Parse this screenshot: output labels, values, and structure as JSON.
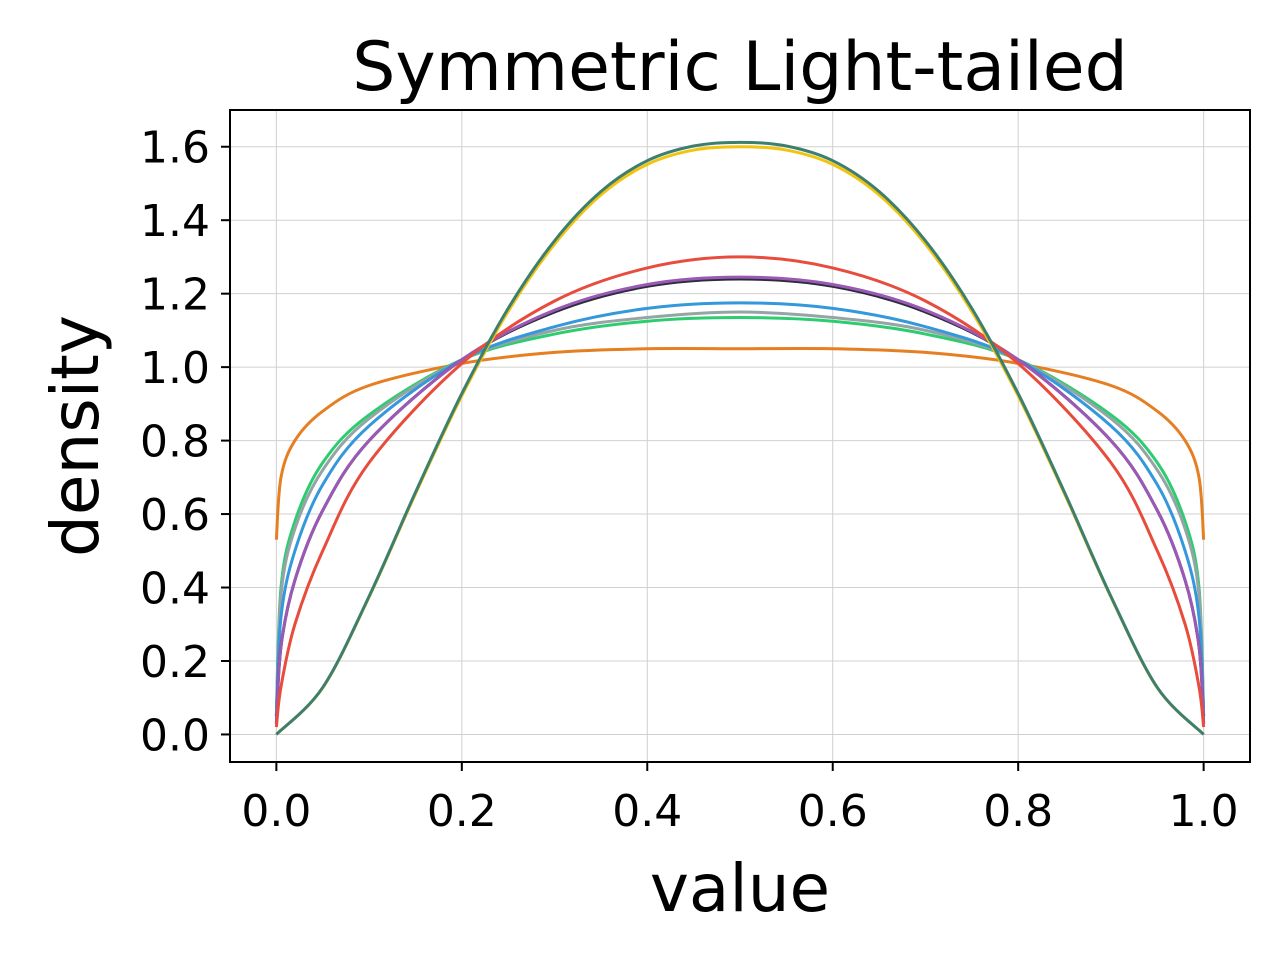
{
  "chart_data": {
    "type": "line",
    "title": "Symmetric Light-tailed",
    "xlabel": "value",
    "ylabel": "density",
    "xlim": [
      -0.05,
      1.05
    ],
    "ylim": [
      -0.075,
      1.7
    ],
    "xticks": [
      0.0,
      0.2,
      0.4,
      0.6,
      0.8,
      1.0
    ],
    "xtick_labels": [
      "0.0",
      "0.2",
      "0.4",
      "0.6",
      "0.8",
      "1.0"
    ],
    "yticks": [
      0.0,
      0.2,
      0.4,
      0.6,
      0.8,
      1.0,
      1.2,
      1.4,
      1.6
    ],
    "ytick_labels": [
      "0.0",
      "0.2",
      "0.4",
      "0.6",
      "0.8",
      "1.0",
      "1.2",
      "1.4",
      "1.6"
    ],
    "grid": true,
    "legend": "none",
    "series": [
      {
        "color": "#e67e22",
        "x": [
          0.0,
          0.005,
          0.02,
          0.05,
          0.1,
          0.2,
          0.3,
          0.4,
          0.5,
          0.6,
          0.7,
          0.8,
          0.9,
          0.95,
          0.98,
          0.995,
          1.0
        ],
        "y": [
          0.53,
          0.7,
          0.8,
          0.88,
          0.95,
          1.01,
          1.04,
          1.05,
          1.05,
          1.05,
          1.04,
          1.01,
          0.95,
          0.88,
          0.8,
          0.7,
          0.53
        ]
      },
      {
        "color": "#2ecc71",
        "x": [
          0.0,
          0.005,
          0.02,
          0.05,
          0.1,
          0.2,
          0.3,
          0.4,
          0.5,
          0.6,
          0.7,
          0.8,
          0.9,
          0.95,
          0.98,
          0.995,
          1.0
        ],
        "y": [
          0.05,
          0.4,
          0.58,
          0.74,
          0.87,
          1.02,
          1.09,
          1.125,
          1.135,
          1.125,
          1.09,
          1.02,
          0.87,
          0.74,
          0.58,
          0.4,
          0.05
        ]
      },
      {
        "color": "#95a5a6",
        "x": [
          0.0,
          0.005,
          0.02,
          0.05,
          0.1,
          0.2,
          0.3,
          0.4,
          0.5,
          0.6,
          0.7,
          0.8,
          0.9,
          0.95,
          0.98,
          0.995,
          1.0
        ],
        "y": [
          0.05,
          0.38,
          0.56,
          0.72,
          0.86,
          1.02,
          1.1,
          1.135,
          1.15,
          1.135,
          1.1,
          1.02,
          0.86,
          0.72,
          0.56,
          0.38,
          0.05
        ]
      },
      {
        "color": "#3498db",
        "x": [
          0.0,
          0.005,
          0.02,
          0.05,
          0.1,
          0.2,
          0.3,
          0.4,
          0.5,
          0.6,
          0.7,
          0.8,
          0.9,
          0.95,
          0.98,
          0.995,
          1.0
        ],
        "y": [
          0.05,
          0.32,
          0.5,
          0.68,
          0.84,
          1.02,
          1.11,
          1.16,
          1.175,
          1.16,
          1.11,
          1.02,
          0.84,
          0.68,
          0.5,
          0.32,
          0.05
        ]
      },
      {
        "color": "#2c2c3a",
        "x": [
          0.0,
          0.005,
          0.02,
          0.05,
          0.1,
          0.2,
          0.3,
          0.4,
          0.5,
          0.6,
          0.7,
          0.8,
          0.9,
          0.95,
          0.98,
          0.995,
          1.0
        ],
        "y": [
          0.03,
          0.24,
          0.42,
          0.61,
          0.8,
          1.02,
          1.15,
          1.22,
          1.24,
          1.22,
          1.15,
          1.02,
          0.8,
          0.61,
          0.42,
          0.24,
          0.03
        ]
      },
      {
        "color": "#9b59b6",
        "x": [
          0.0,
          0.005,
          0.02,
          0.05,
          0.1,
          0.2,
          0.3,
          0.4,
          0.5,
          0.6,
          0.7,
          0.8,
          0.9,
          0.95,
          0.98,
          0.995,
          1.0
        ],
        "y": [
          0.03,
          0.24,
          0.42,
          0.61,
          0.8,
          1.02,
          1.155,
          1.225,
          1.245,
          1.225,
          1.155,
          1.02,
          0.8,
          0.61,
          0.42,
          0.24,
          0.03
        ]
      },
      {
        "color": "#e74c3c",
        "x": [
          0.0,
          0.005,
          0.02,
          0.05,
          0.1,
          0.2,
          0.3,
          0.4,
          0.5,
          0.6,
          0.7,
          0.8,
          0.9,
          0.95,
          0.98,
          0.995,
          1.0
        ],
        "y": [
          0.02,
          0.13,
          0.3,
          0.5,
          0.74,
          1.01,
          1.18,
          1.27,
          1.3,
          1.27,
          1.18,
          1.01,
          0.74,
          0.5,
          0.3,
          0.13,
          0.02
        ]
      },
      {
        "color": "#f1c40f",
        "x": [
          0.0,
          0.05,
          0.1,
          0.15,
          0.2,
          0.25,
          0.3,
          0.35,
          0.4,
          0.45,
          0.5,
          0.55,
          0.6,
          0.65,
          0.7,
          0.75,
          0.8,
          0.85,
          0.9,
          0.95,
          1.0
        ],
        "y": [
          0.0,
          0.127,
          0.374,
          0.655,
          0.922,
          1.152,
          1.335,
          1.469,
          1.552,
          1.591,
          1.6,
          1.591,
          1.552,
          1.469,
          1.335,
          1.152,
          0.922,
          0.655,
          0.374,
          0.127,
          0.0
        ]
      },
      {
        "color": "#3d7f6f",
        "x": [
          0.0,
          0.05,
          0.1,
          0.15,
          0.2,
          0.25,
          0.3,
          0.35,
          0.4,
          0.45,
          0.5,
          0.55,
          0.6,
          0.65,
          0.7,
          0.75,
          0.8,
          0.85,
          0.9,
          0.95,
          1.0
        ],
        "y": [
          0.0,
          0.128,
          0.376,
          0.659,
          0.928,
          1.16,
          1.344,
          1.478,
          1.562,
          1.602,
          1.612,
          1.602,
          1.562,
          1.478,
          1.344,
          1.16,
          0.928,
          0.659,
          0.376,
          0.128,
          0.0
        ]
      }
    ]
  }
}
